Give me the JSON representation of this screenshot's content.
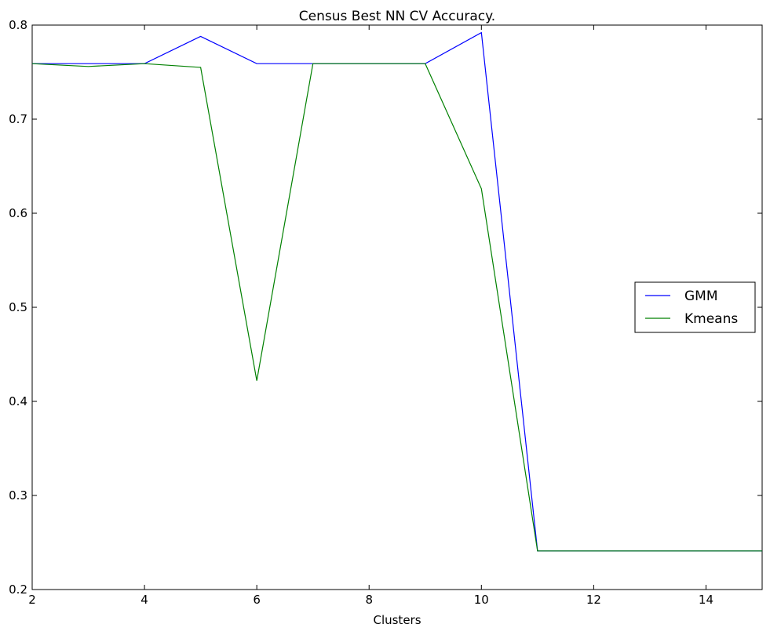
{
  "chart_data": {
    "type": "line",
    "title": "Census Best NN CV Accuracy.",
    "xlabel": "Clusters",
    "ylabel": "",
    "xlim": [
      2,
      15
    ],
    "ylim": [
      0.2,
      0.8
    ],
    "xticks": [
      2,
      4,
      6,
      8,
      10,
      12,
      14
    ],
    "yticks": [
      0.2,
      0.3,
      0.4,
      0.5,
      0.6,
      0.7,
      0.8
    ],
    "xtick_labels": [
      "2",
      "4",
      "6",
      "8",
      "10",
      "12",
      "14"
    ],
    "ytick_labels": [
      "0.2",
      "0.3",
      "0.4",
      "0.5",
      "0.6",
      "0.7",
      "0.8"
    ],
    "grid": false,
    "legend_position": "center-right",
    "x": [
      2,
      3,
      4,
      5,
      6,
      7,
      8,
      9,
      10,
      11,
      12,
      13,
      14,
      15
    ],
    "series": [
      {
        "name": "GMM",
        "color": "#0000ff",
        "values": [
          0.759,
          0.759,
          0.759,
          0.788,
          0.759,
          0.759,
          0.759,
          0.759,
          0.792,
          0.241,
          0.241,
          0.241,
          0.241,
          0.241
        ]
      },
      {
        "name": "Kmeans",
        "color": "#008000",
        "values": [
          0.759,
          0.756,
          0.759,
          0.755,
          0.422,
          0.759,
          0.759,
          0.759,
          0.626,
          0.241,
          0.241,
          0.241,
          0.241,
          0.241
        ]
      }
    ]
  }
}
